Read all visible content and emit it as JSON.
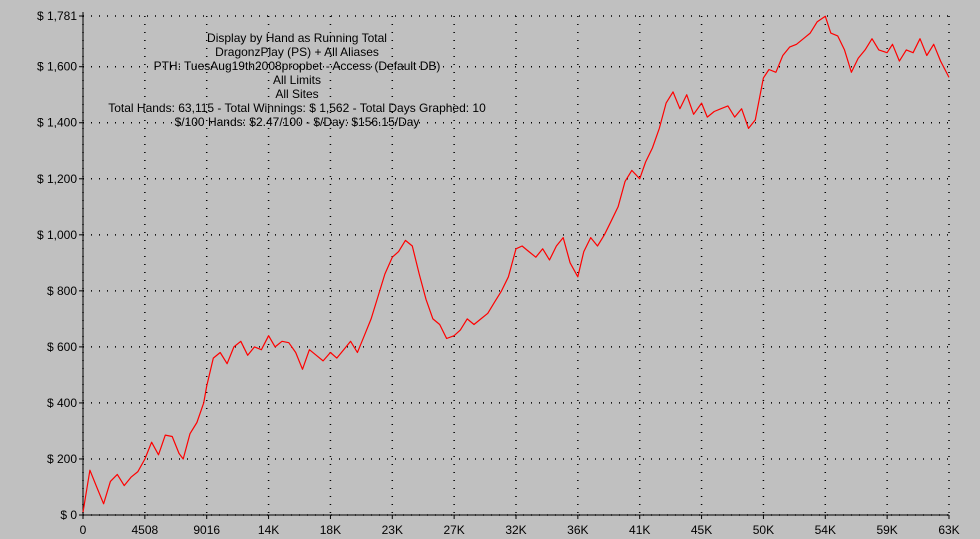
{
  "header": {
    "lines": [
      "Display by Hand as Running Total",
      "DragonzPlay (PS) + All Aliases",
      "PTH: TuesAug19th2008propbet - Access (Default DB)",
      "All Limits",
      "All Sites",
      "Total Hands: 63,115 - Total Winnings: $ 1,562 - Total Days Graphed: 10",
      "$/100 Hands: $2.47/100 - $/Day: $156.15/Day"
    ]
  },
  "colors": {
    "background": "#c0c0c0",
    "line": "#ff0000",
    "grid": "#000000"
  },
  "chart_data": {
    "type": "line",
    "grid": true,
    "xlim": [
      0,
      63115
    ],
    "ylim": [
      0,
      1781
    ],
    "x_ticks": [
      0,
      4508,
      9016,
      13525,
      18033,
      22541,
      27049,
      31557,
      36065,
      40574,
      45082,
      49590,
      54098,
      58606,
      63115
    ],
    "x_tick_labels": [
      "0",
      "4508",
      "9016",
      "14K",
      "18K",
      "23K",
      "27K",
      "32K",
      "36K",
      "41K",
      "45K",
      "50K",
      "54K",
      "59K",
      "63K"
    ],
    "y_ticks": [
      0,
      200,
      400,
      600,
      800,
      1000,
      1200,
      1400,
      1600,
      1781
    ],
    "y_tick_labels": [
      "$ 0",
      "$ 200",
      "$ 400",
      "$ 600",
      "$ 800",
      "$ 1,000",
      "$ 1,200",
      "$ 1,400",
      "$ 1,600",
      "$ 1,781"
    ],
    "series": [
      {
        "x": [
          0,
          500,
          1000,
          1500,
          2000,
          2500,
          3000,
          3500,
          4000,
          4508,
          5000,
          5500,
          6000,
          6500,
          7000,
          7300,
          7800,
          8300,
          8800,
          9016,
          9500,
          10000,
          10500,
          11000,
          11500,
          12000,
          12500,
          13000,
          13525,
          14000,
          14500,
          15000,
          15500,
          16000,
          16500,
          17000,
          17500,
          18033,
          18500,
          19000,
          19500,
          20000,
          20500,
          21000,
          21500,
          22000,
          22541,
          23000,
          23500,
          24000,
          24500,
          25000,
          25500,
          26000,
          26500,
          27049,
          27500,
          28000,
          28500,
          29000,
          29500,
          30000,
          30500,
          31000,
          31557,
          32000,
          32500,
          33000,
          33500,
          34000,
          34500,
          35000,
          35500,
          36065,
          36500,
          37000,
          37500,
          38000,
          38500,
          39000,
          39500,
          40000,
          40574,
          41000,
          41500,
          42000,
          42500,
          43000,
          43500,
          44000,
          44500,
          45082,
          45500,
          46000,
          46500,
          47000,
          47500,
          48000,
          48500,
          49000,
          49590,
          50000,
          50500,
          51000,
          51500,
          52000,
          52500,
          53000,
          53500,
          54098,
          54500,
          55000,
          55500,
          56000,
          56500,
          57000,
          57500,
          58000,
          58606,
          59000,
          59500,
          60000,
          60500,
          61000,
          61500,
          62000,
          62500,
          63115
        ],
        "values": [
          10,
          160,
          100,
          40,
          120,
          145,
          105,
          135,
          155,
          200,
          260,
          215,
          285,
          280,
          220,
          200,
          290,
          330,
          400,
          460,
          560,
          580,
          540,
          600,
          620,
          570,
          600,
          590,
          640,
          600,
          620,
          615,
          580,
          520,
          590,
          570,
          550,
          580,
          560,
          590,
          620,
          580,
          640,
          700,
          780,
          860,
          920,
          940,
          980,
          960,
          860,
          770,
          700,
          680,
          630,
          640,
          660,
          700,
          680,
          700,
          720,
          760,
          800,
          850,
          950,
          960,
          940,
          920,
          950,
          910,
          960,
          990,
          900,
          850,
          940,
          990,
          960,
          1000,
          1050,
          1100,
          1190,
          1230,
          1200,
          1260,
          1310,
          1380,
          1470,
          1510,
          1450,
          1500,
          1430,
          1470,
          1420,
          1440,
          1450,
          1460,
          1420,
          1450,
          1380,
          1410,
          1560,
          1590,
          1580,
          1640,
          1670,
          1680,
          1700,
          1720,
          1760,
          1780,
          1720,
          1710,
          1660,
          1580,
          1630,
          1660,
          1700,
          1660,
          1650,
          1680,
          1620,
          1660,
          1650,
          1700,
          1640,
          1680,
          1620,
          1562
        ]
      }
    ]
  }
}
